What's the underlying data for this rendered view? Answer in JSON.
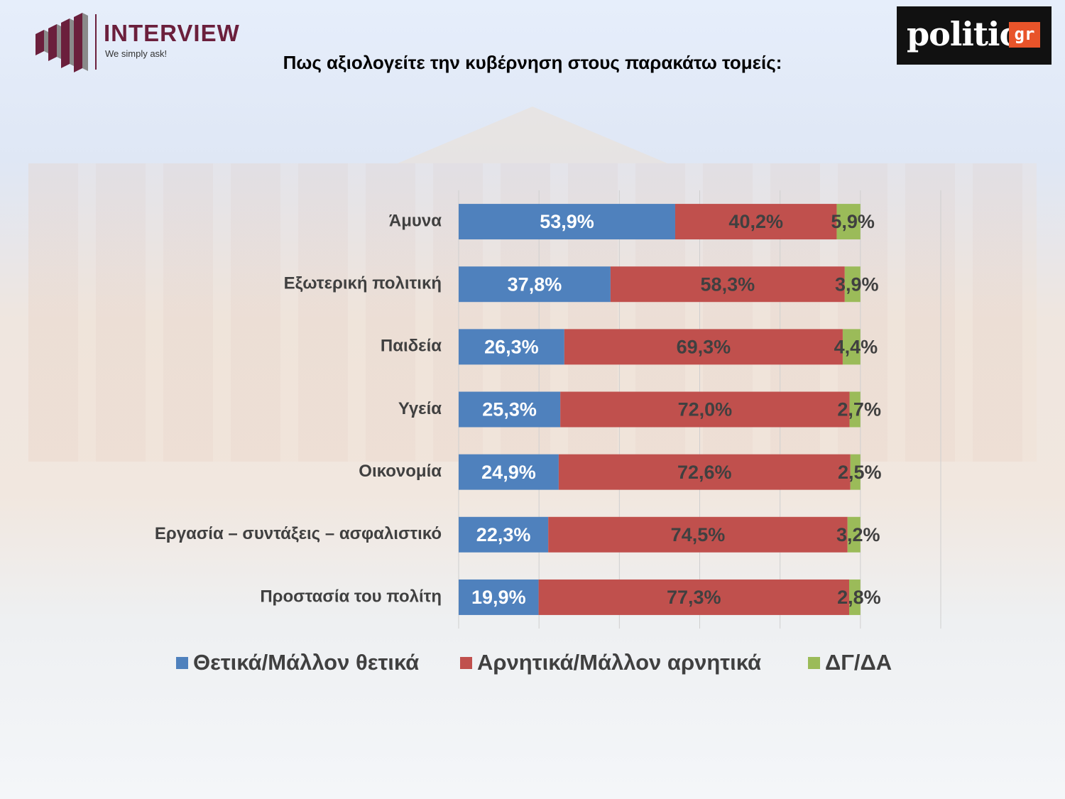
{
  "logos": {
    "interview": {
      "brand": "INTERVIEW",
      "tagline": "We simply ask!"
    },
    "politic": {
      "word": "politic",
      "tag": "gr"
    }
  },
  "chart_data": {
    "type": "bar",
    "orientation": "horizontal",
    "stacked": true,
    "title": "Πως αξιολογείτε την κυβέρνηση στους παρακάτω τομείς:",
    "categories": [
      "Άμυνα",
      "Εξωτερική πολιτική",
      "Παιδεία",
      "Υγεία",
      "Οικονομία",
      "Εργασία – συντάξεις – ασφαλιστικό",
      "Προστασία του πολίτη"
    ],
    "series": [
      {
        "name": "Θετικά/Μάλλον θετικά",
        "color": "#4f81bd",
        "values": [
          53.9,
          37.8,
          26.3,
          25.3,
          24.9,
          22.3,
          19.9
        ],
        "labels": [
          "53,9%",
          "37,8%",
          "26,3%",
          "25,3%",
          "24,9%",
          "22,3%",
          "19,9%"
        ]
      },
      {
        "name": "Αρνητικά/Μάλλον αρνητικά",
        "color": "#c0504d",
        "values": [
          40.2,
          58.3,
          69.3,
          72.0,
          72.6,
          74.5,
          77.3
        ],
        "labels": [
          "40,2%",
          "58,3%",
          "69,3%",
          "72,0%",
          "72,6%",
          "74,5%",
          "77,3%"
        ]
      },
      {
        "name": "ΔΓ/ΔΑ",
        "color": "#9bbb59",
        "values": [
          5.9,
          3.9,
          4.4,
          2.7,
          2.5,
          3.2,
          2.8
        ],
        "labels": [
          "5,9%",
          "3,9%",
          "4,4%",
          "2,7%",
          "2,5%",
          "3,2%",
          "2,8%"
        ]
      }
    ],
    "xlim": [
      0,
      120
    ],
    "grid": true,
    "legend": "bottom"
  }
}
